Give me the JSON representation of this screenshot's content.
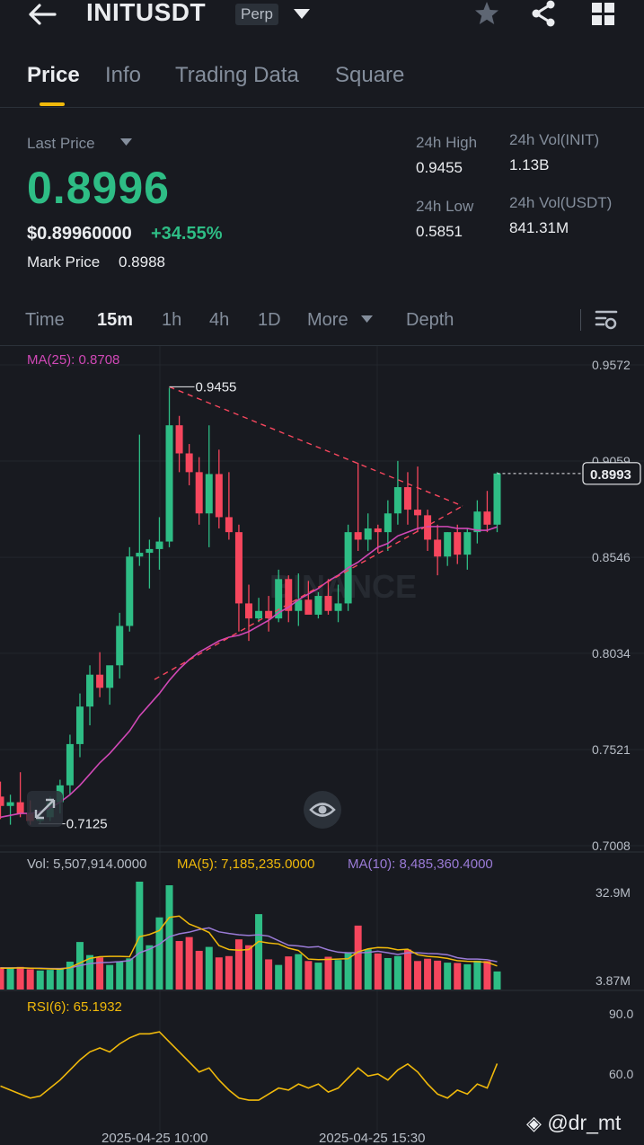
{
  "header": {
    "symbol": "INITUSDT",
    "contract_type": "Perp",
    "icons": [
      "back-arrow-icon",
      "chevron-down-icon",
      "star-icon",
      "share-icon",
      "grid-icon"
    ]
  },
  "tabs": [
    {
      "label": "Price",
      "active": true
    },
    {
      "label": "Info",
      "active": false
    },
    {
      "label": "Trading Data",
      "active": false
    },
    {
      "label": "Square",
      "active": false
    }
  ],
  "ticker": {
    "last_price_label": "Last Price",
    "last_price": "0.8996",
    "usd_price": "$0.89960000",
    "change_pct": "+34.55%",
    "mark_price_label": "Mark Price",
    "mark_price": "0.8988",
    "high_label": "24h High",
    "high": "0.9455",
    "low_label": "24h Low",
    "low": "0.5851",
    "vol_init_label": "24h Vol(INIT)",
    "vol_init": "1.13B",
    "vol_usdt_label": "24h Vol(USDT)",
    "vol_usdt": "841.31M"
  },
  "timeframes": {
    "items": [
      {
        "label": "Time",
        "active": false
      },
      {
        "label": "15m",
        "active": true
      },
      {
        "label": "1h",
        "active": false
      },
      {
        "label": "4h",
        "active": false
      },
      {
        "label": "1D",
        "active": false
      }
    ],
    "more_label": "More",
    "depth_label": "Depth"
  },
  "colors": {
    "up": "#2ebd85",
    "down": "#f6465d",
    "ma25": "#d048b6",
    "ma5": "#f0b90b",
    "ma10": "#9a7bd6",
    "accent": "#f0b90b"
  },
  "chart_data": {
    "type": "candlestick",
    "interval": "15m",
    "ma_label": "MA(25): 0.8708",
    "price_ticks": [
      "0.9572",
      "0.9059",
      "0.8546",
      "0.8034",
      "0.7521",
      "0.7008"
    ],
    "current_price_tag": "0.8993",
    "annotations": {
      "high": "0.9455",
      "low": "0.7125"
    },
    "watermark": "BINANCE",
    "x_ticks": [
      "2025-04-25 10:00",
      "2025-04-25 15:30"
    ],
    "candles": [
      {
        "o": 0.727,
        "h": 0.735,
        "l": 0.715,
        "c": 0.722
      },
      {
        "o": 0.722,
        "h": 0.728,
        "l": 0.712,
        "c": 0.724
      },
      {
        "o": 0.724,
        "h": 0.74,
        "l": 0.716,
        "c": 0.718
      },
      {
        "o": 0.718,
        "h": 0.725,
        "l": 0.712,
        "c": 0.714
      },
      {
        "o": 0.714,
        "h": 0.72,
        "l": 0.7125,
        "c": 0.716
      },
      {
        "o": 0.716,
        "h": 0.727,
        "l": 0.714,
        "c": 0.724
      },
      {
        "o": 0.724,
        "h": 0.736,
        "l": 0.718,
        "c": 0.733
      },
      {
        "o": 0.733,
        "h": 0.76,
        "l": 0.728,
        "c": 0.755
      },
      {
        "o": 0.755,
        "h": 0.782,
        "l": 0.748,
        "c": 0.775
      },
      {
        "o": 0.775,
        "h": 0.797,
        "l": 0.765,
        "c": 0.792
      },
      {
        "o": 0.792,
        "h": 0.804,
        "l": 0.78,
        "c": 0.785
      },
      {
        "o": 0.785,
        "h": 0.795,
        "l": 0.776,
        "c": 0.797
      },
      {
        "o": 0.797,
        "h": 0.825,
        "l": 0.79,
        "c": 0.818
      },
      {
        "o": 0.818,
        "h": 0.86,
        "l": 0.815,
        "c": 0.855
      },
      {
        "o": 0.855,
        "h": 0.92,
        "l": 0.85,
        "c": 0.857
      },
      {
        "o": 0.857,
        "h": 0.864,
        "l": 0.838,
        "c": 0.859
      },
      {
        "o": 0.859,
        "h": 0.876,
        "l": 0.848,
        "c": 0.863
      },
      {
        "o": 0.863,
        "h": 0.945,
        "l": 0.86,
        "c": 0.925
      },
      {
        "o": 0.925,
        "h": 0.93,
        "l": 0.9,
        "c": 0.91
      },
      {
        "o": 0.91,
        "h": 0.915,
        "l": 0.893,
        "c": 0.9
      },
      {
        "o": 0.9,
        "h": 0.908,
        "l": 0.872,
        "c": 0.878
      },
      {
        "o": 0.878,
        "h": 0.925,
        "l": 0.86,
        "c": 0.899
      },
      {
        "o": 0.899,
        "h": 0.912,
        "l": 0.87,
        "c": 0.876
      },
      {
        "o": 0.876,
        "h": 0.9,
        "l": 0.864,
        "c": 0.868
      },
      {
        "o": 0.868,
        "h": 0.872,
        "l": 0.815,
        "c": 0.83
      },
      {
        "o": 0.83,
        "h": 0.84,
        "l": 0.81,
        "c": 0.822
      },
      {
        "o": 0.822,
        "h": 0.833,
        "l": 0.82,
        "c": 0.826
      },
      {
        "o": 0.826,
        "h": 0.834,
        "l": 0.815,
        "c": 0.822
      },
      {
        "o": 0.822,
        "h": 0.848,
        "l": 0.82,
        "c": 0.843
      },
      {
        "o": 0.843,
        "h": 0.845,
        "l": 0.82,
        "c": 0.826
      },
      {
        "o": 0.826,
        "h": 0.846,
        "l": 0.818,
        "c": 0.832
      },
      {
        "o": 0.832,
        "h": 0.842,
        "l": 0.825,
        "c": 0.824
      },
      {
        "o": 0.824,
        "h": 0.836,
        "l": 0.822,
        "c": 0.834
      },
      {
        "o": 0.834,
        "h": 0.843,
        "l": 0.824,
        "c": 0.826
      },
      {
        "o": 0.826,
        "h": 0.84,
        "l": 0.82,
        "c": 0.83
      },
      {
        "o": 0.83,
        "h": 0.872,
        "l": 0.826,
        "c": 0.868
      },
      {
        "o": 0.868,
        "h": 0.905,
        "l": 0.858,
        "c": 0.864
      },
      {
        "o": 0.864,
        "h": 0.878,
        "l": 0.858,
        "c": 0.87
      },
      {
        "o": 0.87,
        "h": 0.872,
        "l": 0.857,
        "c": 0.868
      },
      {
        "o": 0.868,
        "h": 0.885,
        "l": 0.858,
        "c": 0.878
      },
      {
        "o": 0.878,
        "h": 0.906,
        "l": 0.872,
        "c": 0.892
      },
      {
        "o": 0.892,
        "h": 0.9,
        "l": 0.872,
        "c": 0.88
      },
      {
        "o": 0.88,
        "h": 0.903,
        "l": 0.868,
        "c": 0.877
      },
      {
        "o": 0.877,
        "h": 0.88,
        "l": 0.858,
        "c": 0.864
      },
      {
        "o": 0.864,
        "h": 0.872,
        "l": 0.845,
        "c": 0.855
      },
      {
        "o": 0.855,
        "h": 0.868,
        "l": 0.85,
        "c": 0.868
      },
      {
        "o": 0.868,
        "h": 0.872,
        "l": 0.851,
        "c": 0.856
      },
      {
        "o": 0.856,
        "h": 0.87,
        "l": 0.848,
        "c": 0.868
      },
      {
        "o": 0.868,
        "h": 0.885,
        "l": 0.862,
        "c": 0.879
      },
      {
        "o": 0.879,
        "h": 0.89,
        "l": 0.868,
        "c": 0.872
      },
      {
        "o": 0.872,
        "h": 0.9,
        "l": 0.868,
        "c": 0.8993
      }
    ],
    "ma25": [
      0.716,
      0.717,
      0.718,
      0.718,
      0.719,
      0.721,
      0.724,
      0.728,
      0.733,
      0.739,
      0.745,
      0.75,
      0.756,
      0.762,
      0.77,
      0.776,
      0.782,
      0.789,
      0.795,
      0.8,
      0.804,
      0.807,
      0.81,
      0.812,
      0.813,
      0.815,
      0.818,
      0.821,
      0.825,
      0.828,
      0.832,
      0.835,
      0.838,
      0.842,
      0.845,
      0.849,
      0.852,
      0.856,
      0.86,
      0.862,
      0.866,
      0.868,
      0.87,
      0.871,
      0.871,
      0.871,
      0.87,
      0.87,
      0.869,
      0.869,
      0.8708
    ],
    "volume": {
      "label": "Vol: 5,507,914.0000",
      "ma5_label": "MA(5): 7,185,235.0000",
      "ma10_label": "MA(10): 8,485,360.4000",
      "ticks": [
        "32.9M",
        "3.87M"
      ],
      "values": [
        6.8,
        6.5,
        6.9,
        6.2,
        5.8,
        6.0,
        6.3,
        8.5,
        14.5,
        10.5,
        9.8,
        7.5,
        8.4,
        9.5,
        32.9,
        13.5,
        22.0,
        31.8,
        14.8,
        16.0,
        11.8,
        13.0,
        9.8,
        10.2,
        15.3,
        13.5,
        23.0,
        9.2,
        7.5,
        10.1,
        10.8,
        8.7,
        8.2,
        10.0,
        9.0,
        11.3,
        19.5,
        12.3,
        11.0,
        9.6,
        10.2,
        12.2,
        8.7,
        9.4,
        8.8,
        8.2,
        8.1,
        7.7,
        8.8,
        8.7,
        5.51
      ],
      "ma5": [
        6.5,
        6.5,
        6.6,
        6.5,
        6.4,
        6.3,
        6.2,
        6.7,
        8.1,
        9.5,
        10.0,
        10.1,
        10.1,
        10.0,
        16.1,
        16.8,
        18.0,
        22.0,
        22.4,
        20.0,
        18.8,
        17.4,
        13.4,
        12.2,
        12.0,
        12.2,
        14.7,
        14.2,
        13.9,
        12.6,
        11.9,
        9.3,
        9.1,
        9.2,
        9.3,
        9.4,
        11.5,
        12.4,
        12.8,
        12.7,
        12.1,
        12.3,
        10.6,
        10.1,
        9.9,
        9.5,
        8.8,
        8.6,
        8.5,
        8.3,
        7.185
      ],
      "ma10": [
        6.6,
        6.6,
        6.6,
        6.5,
        6.5,
        6.4,
        6.4,
        6.6,
        7.3,
        7.9,
        8.2,
        8.3,
        8.5,
        8.8,
        11.2,
        12.3,
        13.8,
        16.1,
        17.0,
        17.5,
        18.3,
        18.8,
        17.6,
        17.1,
        16.7,
        16.5,
        16.7,
        16.3,
        14.9,
        13.5,
        13.3,
        12.9,
        13.1,
        12.1,
        11.4,
        11.2,
        11.2,
        11.3,
        11.7,
        11.2,
        10.7,
        11.2,
        11.2,
        11.0,
        10.9,
        10.6,
        9.7,
        9.3,
        9.3,
        9.1,
        8.485
      ]
    },
    "rsi": {
      "label": "RSI(6): 65.1932",
      "ticks": [
        "90.0",
        "60.0"
      ],
      "values": [
        54,
        52,
        50,
        48,
        49,
        53,
        57,
        62,
        67,
        71,
        73,
        71,
        75,
        78,
        80,
        80,
        81,
        76,
        71,
        66,
        61,
        63,
        57,
        52,
        48,
        47,
        47,
        50,
        53,
        52,
        55,
        53,
        55,
        51,
        53,
        58,
        63,
        59,
        60,
        57,
        62,
        65,
        61,
        55,
        50,
        48,
        52,
        50,
        55,
        53,
        65.19
      ]
    }
  },
  "watermark_handle": "@dr_mt"
}
